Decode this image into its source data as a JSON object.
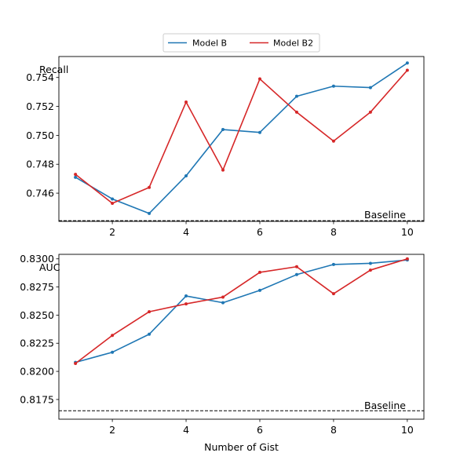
{
  "chart_data": [
    {
      "type": "line",
      "ylabel": "Recall",
      "xlabel": "",
      "x": [
        1,
        2,
        3,
        4,
        5,
        6,
        7,
        8,
        9,
        10
      ],
      "xlim": [
        0.55,
        10.45
      ],
      "ylim": [
        0.74405,
        0.75545
      ],
      "xticks": [
        2,
        4,
        6,
        8,
        10
      ],
      "yticks": [
        0.746,
        0.748,
        0.75,
        0.752,
        0.754
      ],
      "ytick_decimals": 3,
      "series": [
        {
          "name": "Model B",
          "color": "#1f77b4",
          "values": [
            0.7471,
            0.7456,
            0.7446,
            0.7472,
            0.7504,
            0.7502,
            0.7527,
            0.7534,
            0.7533,
            0.755
          ]
        },
        {
          "name": "Model B2",
          "color": "#d62728",
          "values": [
            0.7473,
            0.7453,
            0.7464,
            0.7523,
            0.7476,
            0.7539,
            0.7516,
            0.7496,
            0.7516,
            0.7545
          ]
        }
      ],
      "baseline": {
        "label": "Baseline",
        "value": 0.7441
      },
      "legend": {
        "placement": "above",
        "entries": [
          "Model B",
          "Model B2"
        ]
      }
    },
    {
      "type": "line",
      "ylabel": "AUC",
      "xlabel": "Number of Gist",
      "x": [
        1,
        2,
        3,
        4,
        5,
        6,
        7,
        8,
        9,
        10
      ],
      "xlim": [
        0.55,
        10.45
      ],
      "ylim": [
        0.81575,
        0.8304
      ],
      "xticks": [
        2,
        4,
        6,
        8,
        10
      ],
      "yticks": [
        0.8175,
        0.82,
        0.8225,
        0.825,
        0.8275,
        0.83
      ],
      "ytick_decimals": 4,
      "series": [
        {
          "name": "Model B",
          "color": "#1f77b4",
          "values": [
            0.8208,
            0.8217,
            0.8233,
            0.8267,
            0.8261,
            0.8272,
            0.8286,
            0.8295,
            0.8296,
            0.8299
          ]
        },
        {
          "name": "Model B2",
          "color": "#d62728",
          "values": [
            0.8207,
            0.8232,
            0.8253,
            0.826,
            0.8266,
            0.8288,
            0.8293,
            0.8269,
            0.829,
            0.83
          ]
        }
      ],
      "baseline": {
        "label": "Baseline",
        "value": 0.8165
      }
    }
  ]
}
